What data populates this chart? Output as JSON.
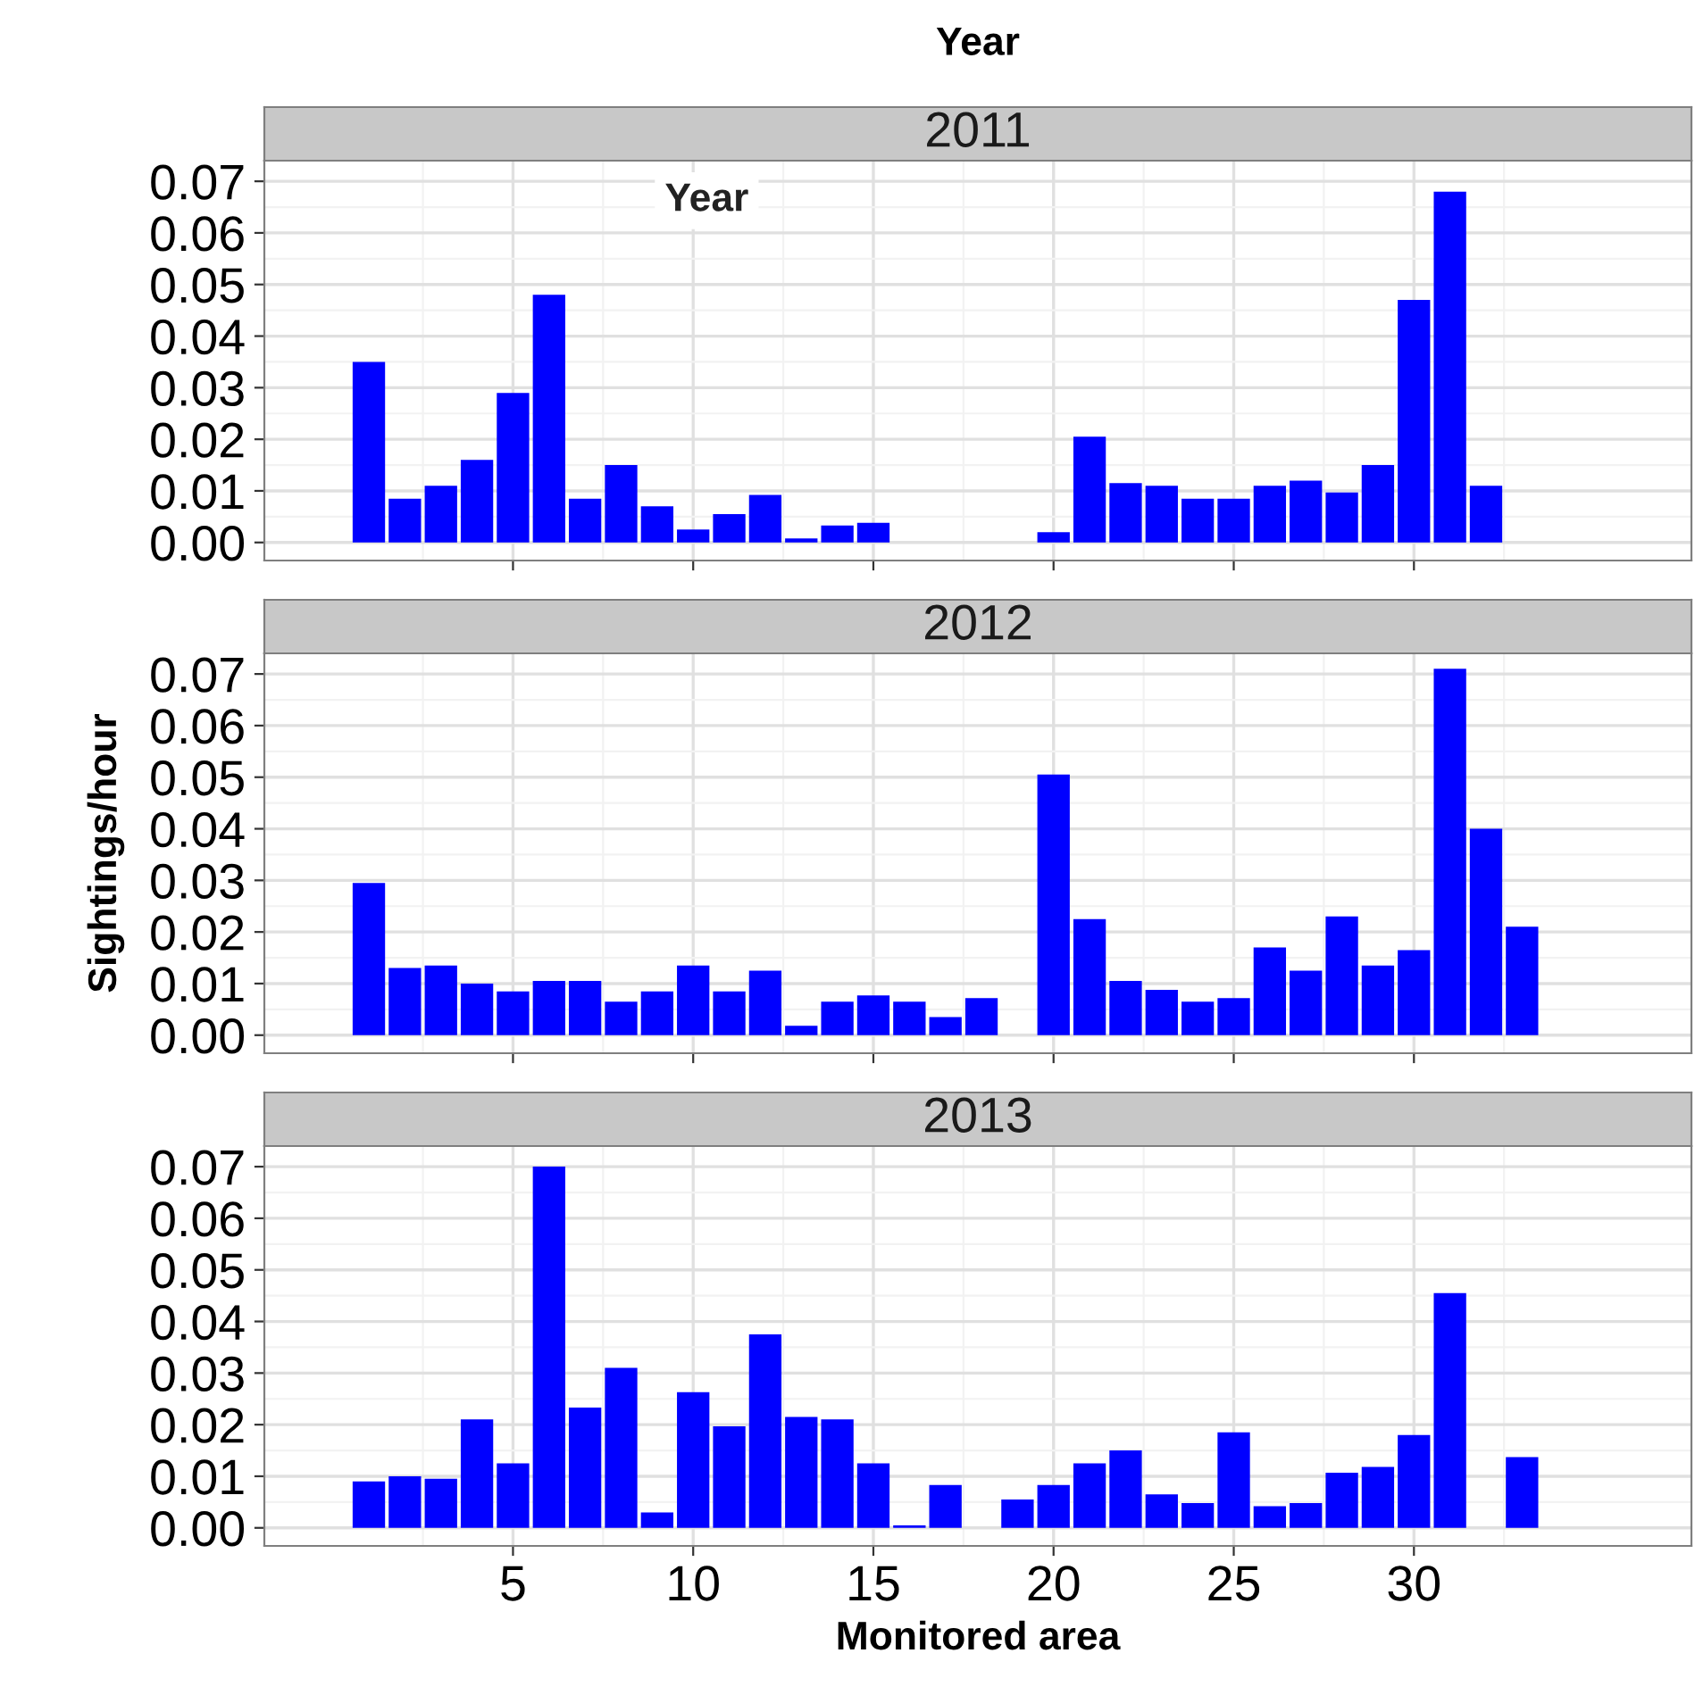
{
  "chart_data": [
    {
      "type": "bar",
      "title": "2011",
      "annotations": [
        "Year"
      ],
      "legend_title": "Year",
      "color": "#0000ff",
      "x": [
        1,
        2,
        3,
        4,
        5,
        6,
        7,
        8,
        9,
        10,
        11,
        12,
        13,
        14,
        15,
        16,
        17,
        18,
        19,
        20,
        21,
        22,
        23,
        24,
        25,
        26,
        27,
        28,
        29,
        30,
        31,
        32
      ],
      "values": [
        0.035,
        0.0085,
        0.011,
        0.016,
        0.029,
        0.048,
        0.0085,
        0.015,
        0.007,
        0.0025,
        0.0055,
        0.0092,
        0.0008,
        0.0033,
        0.0038,
        null,
        null,
        null,
        null,
        0.002,
        0.0205,
        0.0115,
        0.011,
        0.0085,
        0.0085,
        0.011,
        0.012,
        0.0097,
        0.015,
        0.047,
        0.068,
        0.011
      ],
      "xlim": [
        -1.9,
        37.7
      ],
      "ylim": [
        -0.0035,
        0.074
      ],
      "xticks": [
        5,
        10,
        15,
        20,
        25,
        30
      ],
      "yticks": [
        {
          "value": 0,
          "label": "0.00"
        },
        {
          "value": 0.01,
          "label": "0.01"
        },
        {
          "value": 0.02,
          "label": "0.02"
        },
        {
          "value": 0.03,
          "label": "0.03"
        },
        {
          "value": 0.04,
          "label": "0.04"
        },
        {
          "value": 0.05,
          "label": "0.05"
        },
        {
          "value": 0.06,
          "label": "0.06"
        },
        {
          "value": 0.07,
          "label": "0.07"
        }
      ],
      "grid": true,
      "tick_labels": "y"
    },
    {
      "type": "bar",
      "title": "2012",
      "ylabel": "Sightings/hour",
      "color": "#0000ff",
      "x": [
        1,
        2,
        3,
        4,
        5,
        6,
        7,
        8,
        9,
        10,
        11,
        12,
        13,
        14,
        15,
        16,
        17,
        18,
        19,
        20,
        21,
        22,
        23,
        24,
        25,
        26,
        27,
        28,
        29,
        30,
        31,
        32,
        33
      ],
      "values": [
        0.0295,
        0.013,
        0.0135,
        0.01,
        0.0085,
        0.0105,
        0.0105,
        0.0065,
        0.0085,
        0.0135,
        0.0085,
        0.0125,
        0.0018,
        0.0065,
        0.0077,
        0.0065,
        0.0035,
        0.0072,
        null,
        0.0505,
        0.0225,
        0.0105,
        0.0088,
        0.0065,
        0.0072,
        0.017,
        0.0125,
        0.023,
        0.0135,
        0.0165,
        0.071,
        0.04,
        0.021
      ],
      "xlim": [
        -1.9,
        37.7
      ],
      "ylim": [
        -0.0035,
        0.074
      ],
      "xticks": [
        5,
        10,
        15,
        20,
        25,
        30
      ],
      "yticks": [
        {
          "value": 0,
          "label": "0.00"
        },
        {
          "value": 0.01,
          "label": "0.01"
        },
        {
          "value": 0.02,
          "label": "0.02"
        },
        {
          "value": 0.03,
          "label": "0.03"
        },
        {
          "value": 0.04,
          "label": "0.04"
        },
        {
          "value": 0.05,
          "label": "0.05"
        },
        {
          "value": 0.06,
          "label": "0.06"
        },
        {
          "value": 0.07,
          "label": "0.07"
        }
      ],
      "grid": true,
      "tick_labels": "y"
    },
    {
      "type": "bar",
      "title": "2013",
      "xlabel": "Monitored area",
      "color": "#0000ff",
      "x": [
        1,
        2,
        3,
        4,
        5,
        6,
        7,
        8,
        9,
        10,
        11,
        12,
        13,
        14,
        15,
        16,
        17,
        18,
        19,
        20,
        21,
        22,
        23,
        24,
        25,
        26,
        27,
        28,
        29,
        30,
        31,
        32,
        33
      ],
      "values": [
        0.009,
        0.01,
        0.0095,
        0.021,
        0.0125,
        0.07,
        0.0233,
        0.031,
        0.003,
        0.0263,
        0.0197,
        0.0375,
        0.0215,
        0.021,
        0.0125,
        0.0005,
        0.0083,
        null,
        0.0055,
        0.0083,
        0.0125,
        0.015,
        0.0065,
        0.0048,
        0.0185,
        0.0042,
        0.0048,
        0.0107,
        0.0118,
        0.018,
        0.0455,
        null,
        0.0137
      ],
      "xlim": [
        -1.9,
        37.7
      ],
      "ylim": [
        -0.0035,
        0.074
      ],
      "xticks": [
        5,
        10,
        15,
        20,
        25,
        30
      ],
      "yticks": [
        {
          "value": 0,
          "label": "0.00"
        },
        {
          "value": 0.01,
          "label": "0.01"
        },
        {
          "value": 0.02,
          "label": "0.02"
        },
        {
          "value": 0.03,
          "label": "0.03"
        },
        {
          "value": 0.04,
          "label": "0.04"
        },
        {
          "value": 0.05,
          "label": "0.05"
        },
        {
          "value": 0.06,
          "label": "0.06"
        },
        {
          "value": 0.07,
          "label": "0.07"
        }
      ],
      "grid": true
    }
  ]
}
